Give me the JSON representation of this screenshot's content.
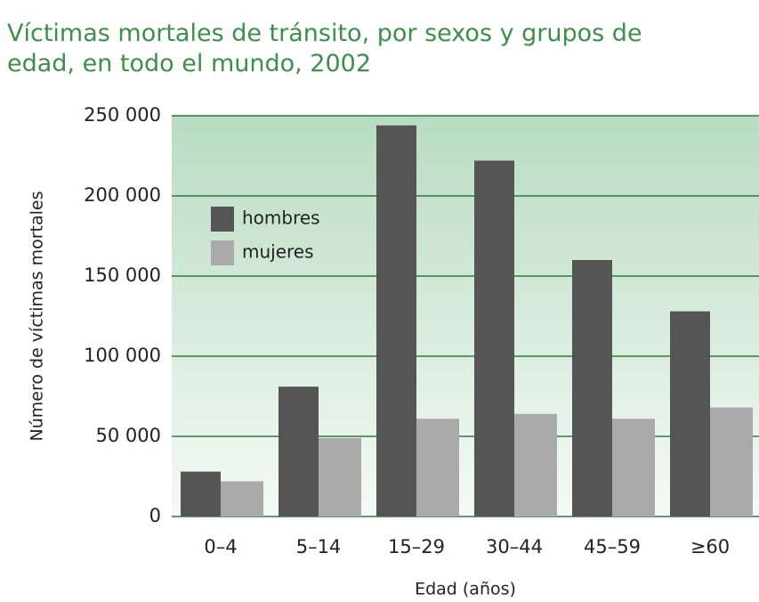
{
  "chart_data": {
    "type": "bar",
    "title": [
      "Víctimas mortales de tránsito, por sexos y grupos de",
      "edad, en todo el mundo, 2002"
    ],
    "x_label": "Edad (años)",
    "y_label": "Número de víctimas mortales",
    "categories": [
      "0–4",
      "5–14",
      "15–29",
      "30–44",
      "45–59",
      "≥60"
    ],
    "series": [
      {
        "name": "hombres",
        "color": "#555555",
        "values": [
          28000,
          81000,
          244000,
          222000,
          160000,
          128000
        ]
      },
      {
        "name": "mujeres",
        "color": "#aaaaaa",
        "values": [
          22000,
          49000,
          61000,
          64000,
          61000,
          68000
        ]
      }
    ],
    "ylim": [
      0,
      250000
    ],
    "yticks": [
      0,
      {
        "value": 50000,
        "label": "50 000"
      },
      {
        "value": 100000,
        "label": "100 000"
      },
      {
        "value": 150000,
        "label": "150 000"
      },
      {
        "value": 200000,
        "label": "200 000"
      },
      {
        "value": 250000,
        "label": "250 000"
      }
    ],
    "grid": true,
    "legend": "upper left"
  }
}
